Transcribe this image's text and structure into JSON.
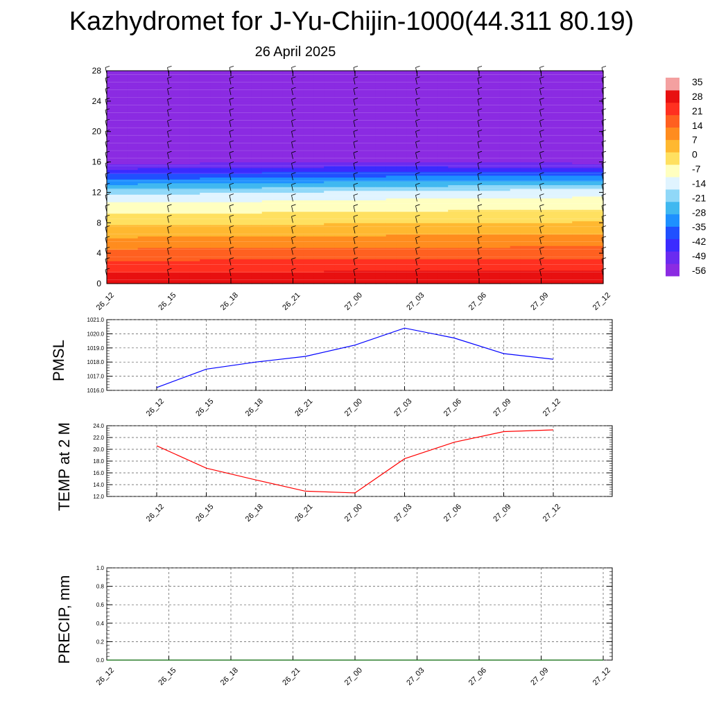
{
  "title": "Kazhydromet for J-Yu-Chijin-1000(44.311 80.19)",
  "subtitle": "26 April 2025",
  "colors": {
    "pmsl_line": "#0000ff",
    "temp_line": "#ff0000",
    "precip_line": "#006400",
    "grid": "#555555",
    "colorbar": [
      "#8b2be2",
      "#6a2bf0",
      "#3b2bff",
      "#2050ff",
      "#1e90ff",
      "#40b8f0",
      "#90d8f8",
      "#e0f4ff",
      "#ffffc0",
      "#ffe060",
      "#ffb830",
      "#ff8c1e",
      "#ff6020",
      "#ff3020",
      "#e81010",
      "#f4a0a0"
    ]
  },
  "chart_data": [
    {
      "type": "heatmap",
      "name": "vertical-cross-section",
      "x_ticks": [
        "26_12",
        "26_15",
        "26_18",
        "26_21",
        "27_00",
        "27_03",
        "27_06",
        "27_09",
        "27_12"
      ],
      "y_ticks": [
        "0",
        "4",
        "8",
        "12",
        "16",
        "20",
        "24",
        "28"
      ],
      "ylim": [
        0,
        28
      ],
      "colorbar_labels": [
        "35",
        "28",
        "21",
        "14",
        "7",
        "0",
        "-7",
        "-14",
        "-21",
        "-28",
        "-35",
        "-42",
        "-49",
        "-56"
      ],
      "value_range": [
        -60,
        40
      ],
      "freezing_level": [
        11.4,
        11.5,
        11.6,
        11.7,
        11.8,
        11.9,
        12.0,
        12.1,
        12.2
      ],
      "tropopause_level": [
        16.2,
        16.3,
        16.4,
        16.4,
        16.5,
        16.5,
        16.4,
        16.3,
        16.2
      ]
    },
    {
      "type": "line",
      "name": "PMSL",
      "ylabel": "PMSL",
      "ylim": [
        1016.0,
        1021.0
      ],
      "y_ticks": [
        "1016.0",
        "1017.0",
        "1018.0",
        "1019.0",
        "1020.0",
        "1021.0"
      ],
      "x_ticks": [
        "26_12",
        "26_15",
        "26_18",
        "26_21",
        "27_00",
        "27_03",
        "27_06",
        "27_09",
        "27_12"
      ],
      "values": [
        1016.2,
        1017.5,
        1018.0,
        1018.4,
        1019.2,
        1020.4,
        1019.7,
        1018.6,
        1018.2
      ]
    },
    {
      "type": "line",
      "name": "TEMP",
      "ylabel": "TEMP at 2 M",
      "ylim": [
        12.0,
        24.0
      ],
      "y_ticks": [
        "12.0",
        "14.0",
        "16.0",
        "18.0",
        "20.0",
        "22.0",
        "24.0"
      ],
      "x_ticks": [
        "26_12",
        "26_15",
        "26_18",
        "26_21",
        "27_00",
        "27_03",
        "27_06",
        "27_09",
        "27_12"
      ],
      "values": [
        20.6,
        16.8,
        14.8,
        12.9,
        12.6,
        18.4,
        21.2,
        23.0,
        23.3
      ]
    },
    {
      "type": "line",
      "name": "PRECIP",
      "ylabel": "PRECIP, mm",
      "ylim": [
        0.0,
        1.0
      ],
      "y_ticks": [
        "0.0",
        "0.2",
        "0.4",
        "0.6",
        "0.8",
        "1.0"
      ],
      "x_ticks": [
        "26_12",
        "26_15",
        "26_18",
        "26_21",
        "27_00",
        "27_03",
        "27_06",
        "27_09",
        "27_12"
      ],
      "values": [
        0,
        0,
        0,
        0,
        0,
        0,
        0,
        0,
        0
      ]
    }
  ]
}
